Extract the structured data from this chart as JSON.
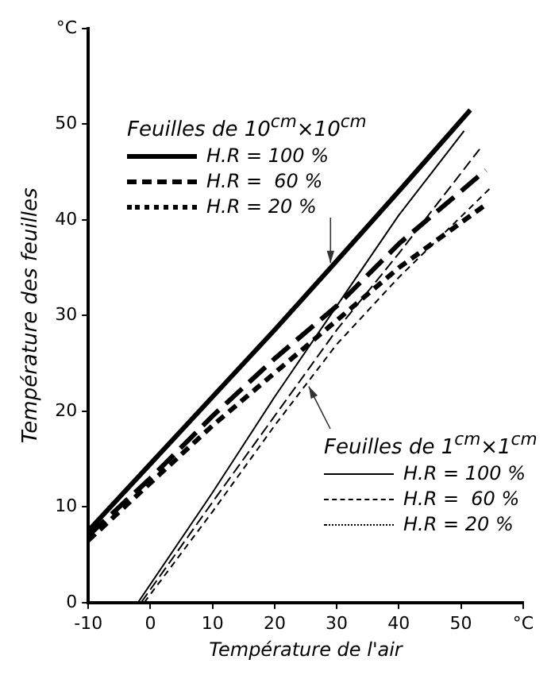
{
  "chart_data": {
    "type": "line",
    "xlabel": "Température de l'air",
    "ylabel": "Température des feuilles",
    "xlim": [
      -10,
      60
    ],
    "xticks": [
      -10,
      0,
      10,
      20,
      30,
      40,
      50,
      {
        "value": 60,
        "label": "°C"
      }
    ],
    "ylim": [
      0,
      60
    ],
    "yticks": [
      0,
      10,
      20,
      30,
      40,
      50,
      {
        "value": 60,
        "label": "°C"
      }
    ],
    "grid": false,
    "legend": "right",
    "marker": "none",
    "annotations": [
      {
        "text": "Feuilles de 10$^{cm}$×10$^{cm}$",
        "x": 29,
        "y": 35.5
      },
      {
        "text": "Feuilles de 1$^{cm}$×1$^{cm}$",
        "x": 25.5,
        "y": 22.6
      }
    ],
    "series": [
      {
        "name": "H.R = 100 %",
        "color": "#000000",
        "line_style": "solid",
        "x": [
          -10,
          0,
          10,
          20,
          29,
          40,
          51.5
        ],
        "values": [
          7.5,
          14.5,
          21.5,
          28.5,
          35,
          43,
          51.5
        ]
      },
      {
        "name": "H.R =  60 %",
        "color": "#000000",
        "line_style": "dashed",
        "x": [
          -10,
          0,
          10,
          20,
          30,
          40,
          54
        ],
        "values": [
          7,
          13,
          19.5,
          25.5,
          31,
          37.5,
          45.2
        ]
      },
      {
        "name": "H.R = 20 %",
        "color": "#000000",
        "line_style": "dotted",
        "x": [
          -10,
          0,
          10,
          20,
          30,
          40,
          54
        ],
        "values": [
          6.5,
          12.5,
          18.5,
          24,
          29.5,
          35,
          41.6
        ]
      },
      {
        "name": "H.R = 100 %",
        "color": "#000000",
        "line_style": "solid",
        "x": [
          -2,
          10,
          20,
          30,
          40,
          50.5
        ],
        "values": [
          0,
          11.5,
          21.5,
          31,
          40.5,
          49.3
        ]
      },
      {
        "name": "H.R =  60 %",
        "color": "#000000",
        "line_style": "dashed",
        "x": [
          -1.5,
          10,
          20,
          30,
          40,
          53
        ],
        "values": [
          0,
          10.5,
          19.5,
          28.5,
          36.5,
          47.4
        ]
      },
      {
        "name": "H.R = 20 %",
        "color": "#000000",
        "line_style": "dotted",
        "x": [
          -1,
          10,
          20,
          30,
          40,
          55
        ],
        "values": [
          0,
          9.5,
          18.5,
          27,
          34,
          43.5
        ]
      }
    ]
  }
}
